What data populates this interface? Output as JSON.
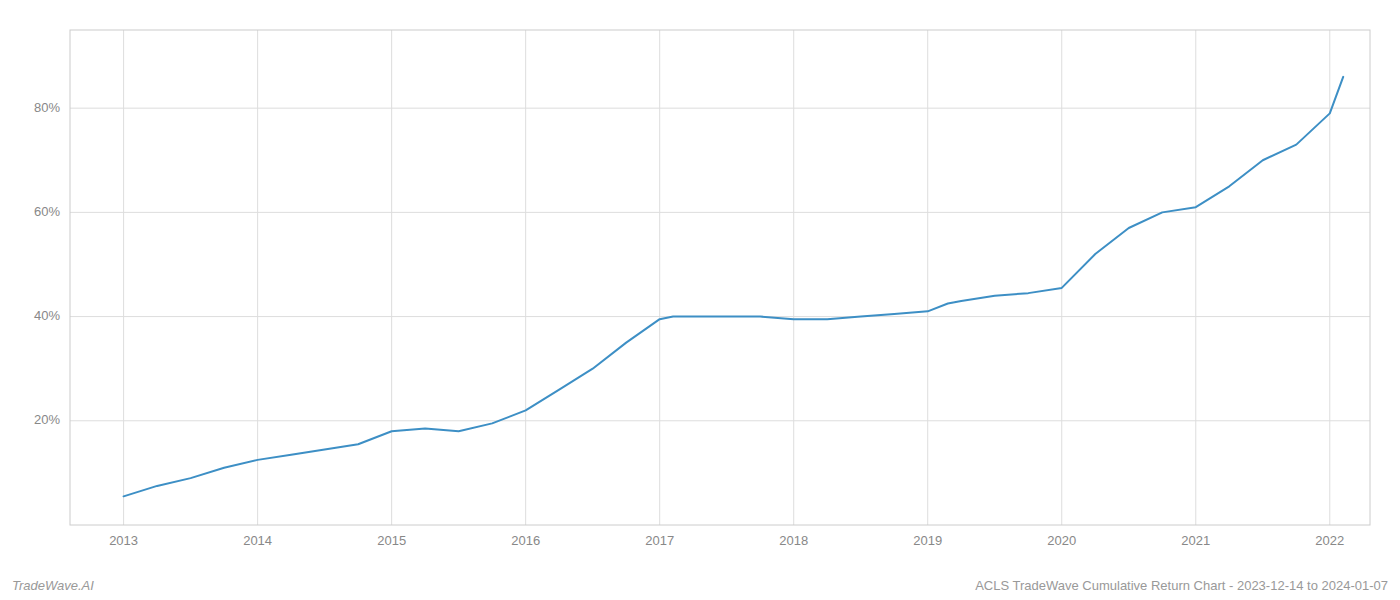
{
  "chart_data": {
    "type": "line",
    "x": [
      2013.0,
      2013.25,
      2013.5,
      2013.75,
      2014.0,
      2014.25,
      2014.5,
      2014.75,
      2015.0,
      2015.25,
      2015.5,
      2015.75,
      2016.0,
      2016.25,
      2016.5,
      2016.75,
      2017.0,
      2017.1,
      2017.25,
      2017.5,
      2017.75,
      2018.0,
      2018.25,
      2018.5,
      2018.75,
      2019.0,
      2019.15,
      2019.25,
      2019.5,
      2019.75,
      2020.0,
      2020.25,
      2020.5,
      2020.75,
      2021.0,
      2021.25,
      2021.5,
      2021.75,
      2022.0,
      2022.1
    ],
    "values": [
      5.5,
      7.5,
      9.0,
      11.0,
      12.5,
      13.5,
      14.5,
      15.5,
      18.0,
      18.5,
      18.0,
      19.5,
      22.0,
      26.0,
      30.0,
      35.0,
      39.5,
      40.0,
      40.0,
      40.0,
      40.0,
      39.5,
      39.5,
      40.0,
      40.5,
      41.0,
      42.5,
      43.0,
      44.0,
      44.5,
      45.5,
      52.0,
      57.0,
      60.0,
      61.0,
      65.0,
      70.0,
      73.0,
      79.0,
      86.0
    ],
    "color": "#3d8fc5",
    "xlim": [
      2012.6,
      2022.3
    ],
    "ylim": [
      0,
      95
    ],
    "xticks": [
      2013,
      2014,
      2015,
      2016,
      2017,
      2018,
      2019,
      2020,
      2021,
      2022
    ],
    "yticks": [
      {
        "value": 20,
        "label": "20%"
      },
      {
        "value": 40,
        "label": "40%"
      },
      {
        "value": 60,
        "label": "60%"
      },
      {
        "value": 80,
        "label": "80%"
      }
    ],
    "grid": true,
    "annotations": [
      "TradeWave.AI",
      "ACLS TradeWave Cumulative Return Chart - 2023-12-14 to 2024-01-07"
    ]
  }
}
